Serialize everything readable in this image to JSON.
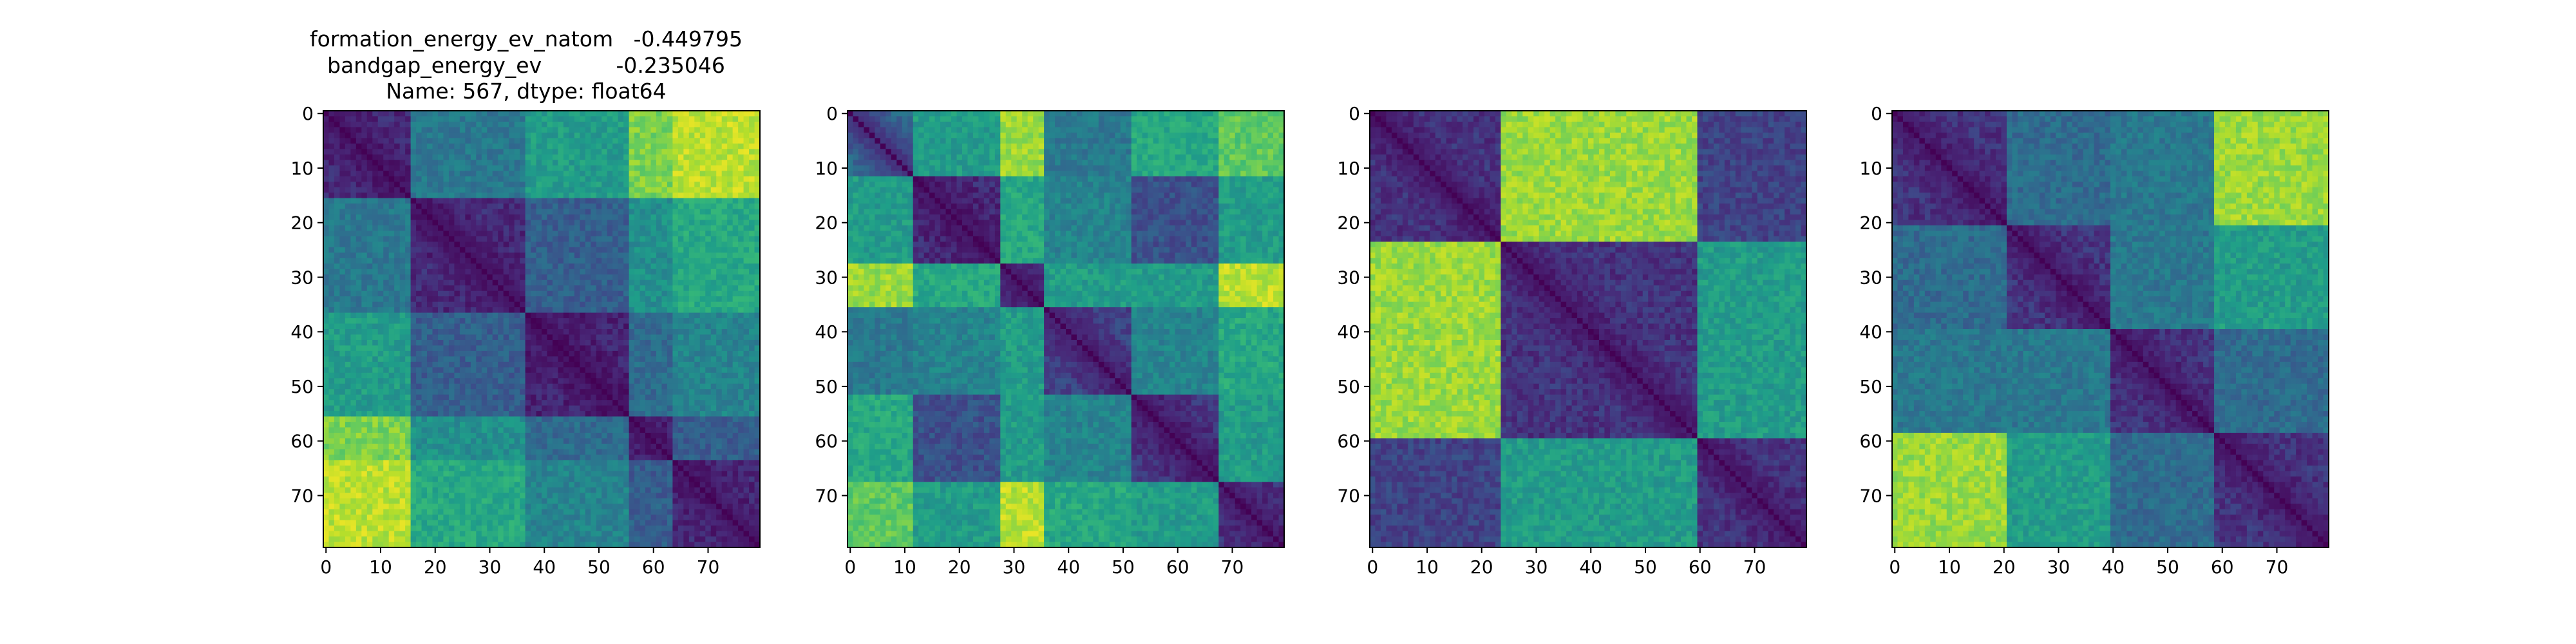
{
  "figure": {
    "title_lines": [
      "formation_energy_ev_natom   -0.449795",
      "bandgap_energy_ev           -0.235046",
      "Name: 567, dtype: float64"
    ]
  },
  "colormap": {
    "name": "viridis",
    "stops": [
      "#440154",
      "#482878",
      "#3e4989",
      "#31688e",
      "#26828e",
      "#1f9e89",
      "#35b779",
      "#6ece58",
      "#b5de2b",
      "#fde725"
    ]
  },
  "chart_data": [
    {
      "type": "heatmap",
      "title": "",
      "size": 80,
      "xlim": [
        0,
        79
      ],
      "ylim": [
        79,
        0
      ],
      "xticks": [
        0,
        10,
        20,
        30,
        40,
        50,
        60,
        70
      ],
      "yticks": [
        0,
        10,
        20,
        30,
        40,
        50,
        60,
        70
      ],
      "grid": false,
      "value_range": [
        0,
        1
      ],
      "block_boundaries": [
        0,
        16,
        37,
        56,
        64,
        80
      ],
      "block_values": [
        [
          0.12,
          0.4,
          0.55,
          0.8,
          0.9
        ],
        [
          0.4,
          0.12,
          0.3,
          0.5,
          0.6
        ],
        [
          0.55,
          0.3,
          0.1,
          0.35,
          0.45
        ],
        [
          0.8,
          0.5,
          0.35,
          0.12,
          0.3
        ],
        [
          0.9,
          0.6,
          0.45,
          0.3,
          0.12
        ]
      ]
    },
    {
      "type": "heatmap",
      "title": "",
      "size": 80,
      "xlim": [
        0,
        79
      ],
      "ylim": [
        79,
        0
      ],
      "xticks": [
        0,
        10,
        20,
        30,
        40,
        50,
        60,
        70
      ],
      "yticks": [
        0,
        10,
        20,
        30,
        40,
        50,
        60,
        70
      ],
      "grid": false,
      "value_range": [
        0,
        1
      ],
      "block_boundaries": [
        0,
        12,
        28,
        36,
        52,
        68,
        80
      ],
      "block_values": [
        [
          0.35,
          0.55,
          0.85,
          0.4,
          0.6,
          0.75
        ],
        [
          0.55,
          0.12,
          0.6,
          0.45,
          0.25,
          0.55
        ],
        [
          0.85,
          0.6,
          0.15,
          0.55,
          0.55,
          0.9
        ],
        [
          0.4,
          0.45,
          0.55,
          0.2,
          0.45,
          0.6
        ],
        [
          0.6,
          0.25,
          0.55,
          0.45,
          0.15,
          0.55
        ],
        [
          0.75,
          0.55,
          0.9,
          0.6,
          0.55,
          0.15
        ]
      ]
    },
    {
      "type": "heatmap",
      "title": "",
      "size": 80,
      "xlim": [
        0,
        79
      ],
      "ylim": [
        79,
        0
      ],
      "xticks": [
        0,
        10,
        20,
        30,
        40,
        50,
        60,
        70
      ],
      "yticks": [
        0,
        10,
        20,
        30,
        40,
        50,
        60,
        70
      ],
      "grid": false,
      "value_range": [
        0,
        1
      ],
      "block_boundaries": [
        0,
        24,
        60,
        80
      ],
      "block_values": [
        [
          0.15,
          0.85,
          0.2
        ],
        [
          0.85,
          0.15,
          0.55
        ],
        [
          0.2,
          0.55,
          0.15
        ]
      ]
    },
    {
      "type": "heatmap",
      "title": "",
      "size": 80,
      "xlim": [
        0,
        79
      ],
      "ylim": [
        79,
        0
      ],
      "xticks": [
        0,
        10,
        20,
        30,
        40,
        50,
        60,
        70
      ],
      "yticks": [
        0,
        10,
        20,
        30,
        40,
        50,
        60,
        70
      ],
      "grid": false,
      "value_range": [
        0,
        1
      ],
      "block_boundaries": [
        0,
        21,
        40,
        59,
        80
      ],
      "block_values": [
        [
          0.15,
          0.35,
          0.4,
          0.85
        ],
        [
          0.35,
          0.15,
          0.4,
          0.55
        ],
        [
          0.4,
          0.4,
          0.15,
          0.35
        ],
        [
          0.85,
          0.55,
          0.35,
          0.15
        ]
      ]
    }
  ]
}
